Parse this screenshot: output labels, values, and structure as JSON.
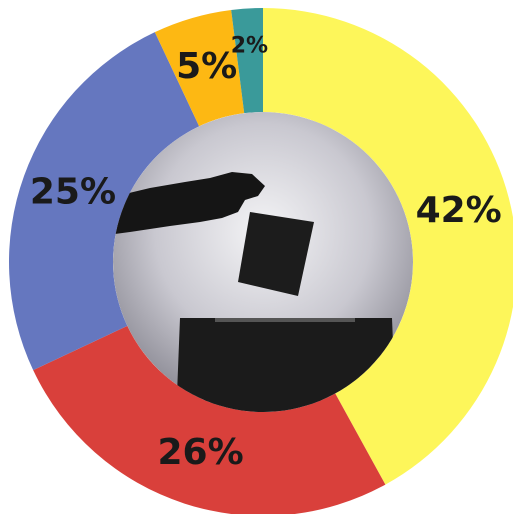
{
  "chart_data": {
    "type": "pie",
    "values": [
      42,
      26,
      25,
      5,
      2
    ],
    "value_labels": [
      "42%",
      "26%",
      "25%",
      "5%",
      "2%"
    ],
    "colors": [
      "#fdf65a",
      "#d9403b",
      "#6577bf",
      "#fdb813",
      "#3a9a9a"
    ]
  }
}
